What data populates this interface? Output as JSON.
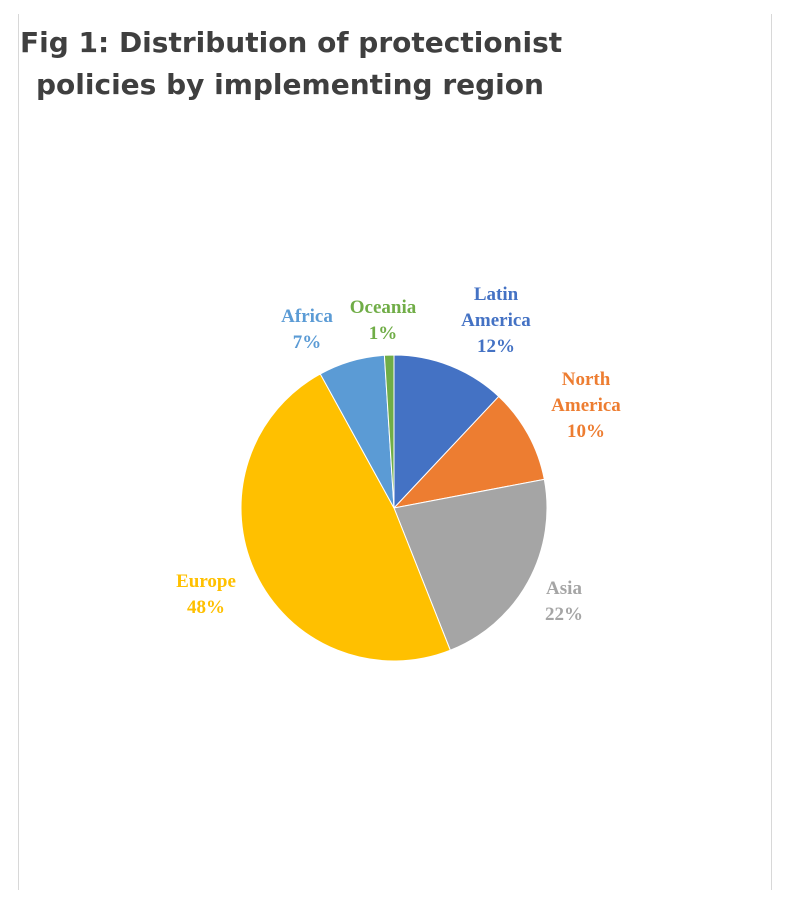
{
  "title_lines": [
    "Fig 1: Distribution of protectionist",
    "policies by implementing region"
  ],
  "chart_data": {
    "type": "pie",
    "title": "Fig 1: Distribution of protectionist policies by implementing region",
    "unit": "%",
    "slices": [
      {
        "label": [
          "Latin",
          "America"
        ],
        "value": 12,
        "value_label": "12%",
        "color": "#4472C4"
      },
      {
        "label": [
          "North",
          "America"
        ],
        "value": 10,
        "value_label": "10%",
        "color": "#ED7D31"
      },
      {
        "label": [
          "Asia"
        ],
        "value": 22,
        "value_label": "22%",
        "color": "#A5A5A5"
      },
      {
        "label": [
          "Europe"
        ],
        "value": 48,
        "value_label": "48%",
        "color": "#FFC000"
      },
      {
        "label": [
          "Africa"
        ],
        "value": 7,
        "value_label": "7%",
        "color": "#5B9BD5"
      },
      {
        "label": [
          "Oceania"
        ],
        "value": 1,
        "value_label": "1%",
        "color": "#70AD47"
      }
    ]
  }
}
